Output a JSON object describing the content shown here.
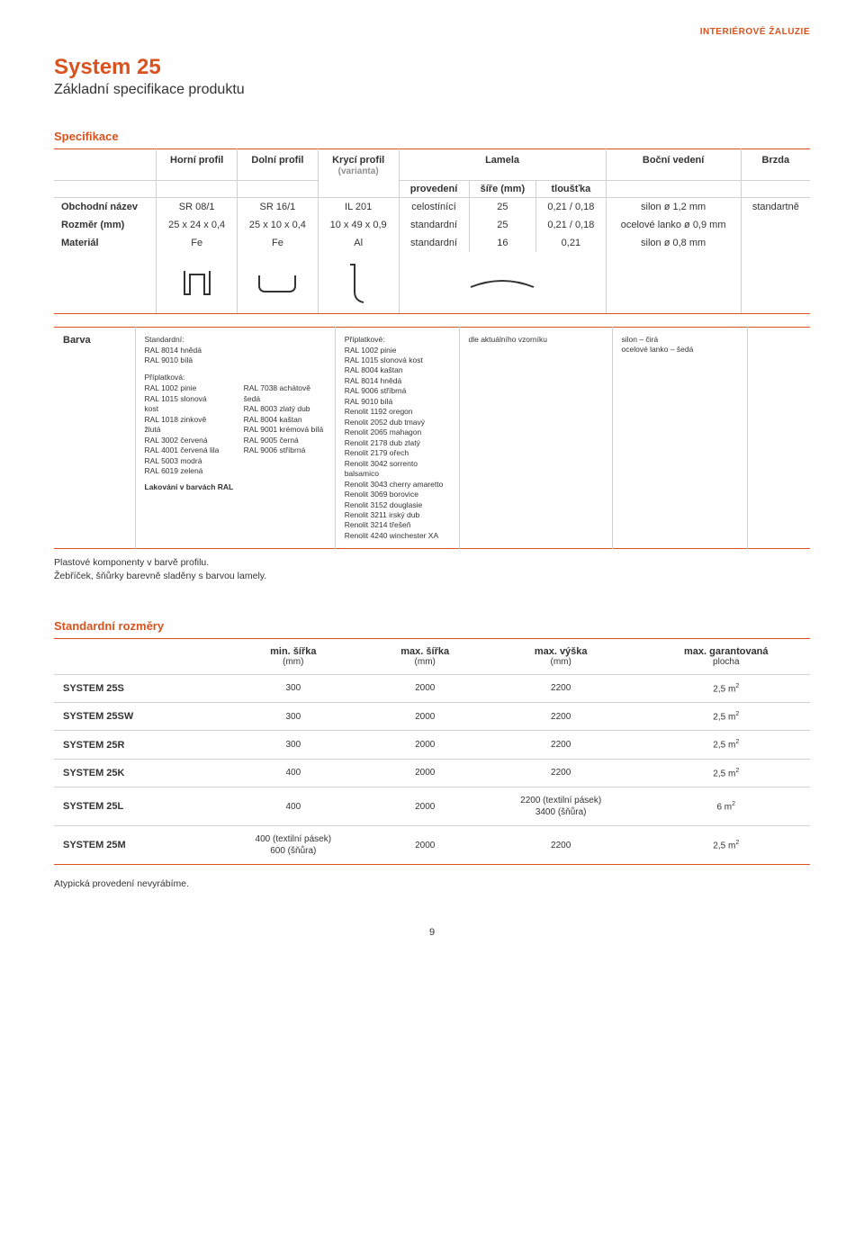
{
  "topline": "INTERIÉROVÉ ŽALUZIE",
  "title": "System 25",
  "subtitle": "Základní specifikace produktu",
  "specSectionTitle": "Specifikace",
  "specHeaders": {
    "horni": "Horní profil",
    "dolni": "Dolní profil",
    "kryci": "Krycí profil",
    "varianta": "(varianta)",
    "lamela": "Lamela",
    "provedeni": "provedení",
    "sire": "šíře (mm)",
    "tloustka": "tloušťka",
    "bocni": "Boční vedení",
    "brzda": "Brzda"
  },
  "specRows": [
    {
      "label": "Obchodní název",
      "horni": "SR 08/1",
      "dolni": "SR 16/1",
      "kryci": "IL 201",
      "prov": "celostínící",
      "sire": "25",
      "tl": "0,21 / 0,18",
      "bocni": "silon ø 1,2 mm",
      "brzda": "standartně"
    },
    {
      "label": "Rozměr (mm)",
      "horni": "25 x 24 x 0,4",
      "dolni": "25 x 10 x 0,4",
      "kryci": "10 x 49 x 0,9",
      "prov": "standardní",
      "sire": "25",
      "tl": "0,21 / 0,18",
      "bocni": "ocelové lanko ø 0,9 mm",
      "brzda": ""
    },
    {
      "label": "Materiál",
      "horni": "Fe",
      "dolni": "Fe",
      "kryci": "Al",
      "prov": "standardní",
      "sire": "16",
      "tl": "0,21",
      "bocni": "silon ø 0,8 mm",
      "brzda": ""
    }
  ],
  "barva": {
    "label": "Barva",
    "standardHead": "Standardní:",
    "standard": [
      "RAL 8014 hnědá",
      "RAL 9010 bílá"
    ],
    "priplatHead": "Příplatková:",
    "colA": [
      "RAL 1002 pinie",
      "RAL 1015 slonová kost",
      "RAL 1018 zinkově žlutá",
      "RAL 3002 červená",
      "RAL 4001 červená lila",
      "RAL 5003 modrá",
      "RAL 6019 zelená"
    ],
    "colB": [
      "RAL 7038 achátově šedá",
      "RAL 8003 zlatý dub",
      "RAL 8004 kaštan",
      "RAL 9001 krémová bílá",
      "RAL 9005 černá",
      "RAL 9006 stříbrná"
    ],
    "lakovani": "Lakování v barvách RAL",
    "priplatHead2": "Příplatkové:",
    "colC": [
      "RAL 1002 pinie",
      "RAL 1015 slonová kost",
      "RAL 8004 kaštan",
      "RAL 8014 hnědá",
      "RAL 9006 stříbrná",
      "RAL 9010 bílá",
      "Renolit 1192 oregon",
      "Renolit 2052 dub tmavý",
      "Renolit 2065 mahagon",
      "Renolit 2178 dub zlatý",
      "Renolit 2179 ořech",
      "Renolit 3042 sorrento balsamico",
      "Renolit 3043 cherry amaretto",
      "Renolit 3069 borovice",
      "Renolit 3152 douglasie",
      "Renolit 3211 irský dub",
      "Renolit 3214 třešeň",
      "Renolit 4240 winchester XA"
    ],
    "vzornik": "dle aktuálního vzorníku",
    "bocniBarva": [
      "silon – čirá",
      "ocelové lanko – šedá"
    ]
  },
  "notes": [
    "Plastové komponenty v barvě profilu.",
    "Žebříček, šňůrky barevně sladěny s barvou lamely."
  ],
  "dimSectionTitle": "Standardní rozměry",
  "dimHeaders": {
    "minS": "min. šířka",
    "maxS": "max. šířka",
    "maxV": "max. výška",
    "maxP": "max. garantovaná",
    "unit": "(mm)",
    "plocha": "plocha"
  },
  "dimRows": [
    {
      "name": "SYSTEM 25S",
      "min": "300",
      "maxS": "2000",
      "maxV": "2200",
      "maxP": "2,5 m²"
    },
    {
      "name": "SYSTEM 25SW",
      "min": "300",
      "maxS": "2000",
      "maxV": "2200",
      "maxP": "2,5 m²"
    },
    {
      "name": "SYSTEM 25R",
      "min": "300",
      "maxS": "2000",
      "maxV": "2200",
      "maxP": "2,5 m²"
    },
    {
      "name": "SYSTEM 25K",
      "min": "400",
      "maxS": "2000",
      "maxV": "2200",
      "maxP": "2,5 m²"
    },
    {
      "name": "SYSTEM 25L",
      "min": "400",
      "maxS": "2000",
      "maxV": "2200 (textilní pásek)\n3400 (šňůra)",
      "maxP": "6 m²"
    },
    {
      "name": "SYSTEM 25M",
      "min": "400 (textilní pásek)\n600 (šňůra)",
      "maxS": "2000",
      "maxV": "2200",
      "maxP": "2,5 m²"
    }
  ],
  "atyp": "Atypická provedení nevyrábíme.",
  "pageNum": "9"
}
